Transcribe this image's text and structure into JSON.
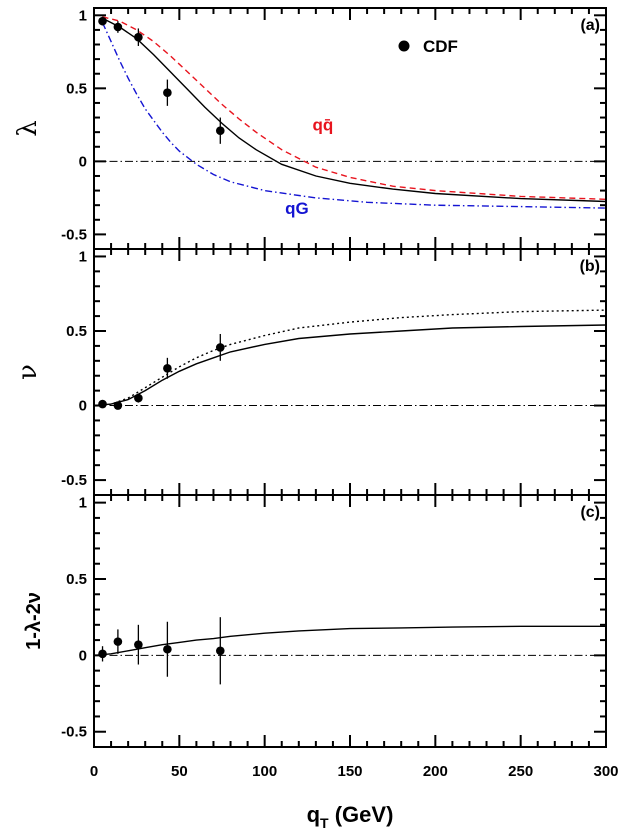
{
  "chart_data": {
    "type": "scatter",
    "x_label": "q",
    "x_label_sub": "T",
    "x_label_unit": " (GeV)",
    "xlim": [
      0,
      300
    ],
    "x_ticks": [
      0,
      50,
      100,
      150,
      200,
      250,
      300
    ],
    "x_tick_labels": [
      "0",
      "50",
      "100",
      "150",
      "200",
      "250",
      "300"
    ],
    "legend": {
      "label": "CDF",
      "position": "top-right"
    },
    "panels": [
      {
        "tag": "(a)",
        "ylabel": "λ",
        "ylim": [
          -0.6,
          1.05
        ],
        "y_ticks": [
          -0.5,
          0,
          0.5,
          1
        ],
        "y_tick_labels": [
          "-0.5",
          "0",
          "0.5",
          "1"
        ],
        "points": [
          {
            "x": 5,
            "y": 0.96,
            "err": 0.03
          },
          {
            "x": 14,
            "y": 0.92,
            "err": 0.04
          },
          {
            "x": 26,
            "y": 0.85,
            "err": 0.06
          },
          {
            "x": 43,
            "y": 0.47,
            "err": 0.09
          },
          {
            "x": 74,
            "y": 0.21,
            "err": 0.09
          }
        ],
        "curves": [
          {
            "name": "",
            "style": "solid",
            "color": "#000000",
            "x": [
              5,
              15,
              25,
              35,
              45,
              55,
              65,
              75,
              85,
              95,
              110,
              130,
              150,
              175,
              200,
              250,
              300
            ],
            "y": [
              0.98,
              0.92,
              0.84,
              0.73,
              0.61,
              0.49,
              0.37,
              0.26,
              0.16,
              0.08,
              -0.02,
              -0.1,
              -0.15,
              -0.19,
              -0.22,
              -0.255,
              -0.275
            ]
          },
          {
            "name": "qq̄",
            "style": "dashed",
            "color": "#e8141e",
            "x": [
              5,
              15,
              25,
              35,
              45,
              55,
              65,
              75,
              85,
              95,
              110,
              130,
              150,
              175,
              200,
              250,
              300
            ],
            "y": [
              0.99,
              0.96,
              0.9,
              0.82,
              0.72,
              0.61,
              0.5,
              0.39,
              0.29,
              0.2,
              0.08,
              -0.04,
              -0.11,
              -0.17,
              -0.2,
              -0.24,
              -0.26
            ]
          },
          {
            "name": "qG",
            "style": "dashdot",
            "color": "#1414d2",
            "x": [
              5,
              10,
              15,
              20,
              25,
              30,
              35,
              40,
              45,
              50,
              60,
              70,
              80,
              100,
              130,
              160,
              200,
              250,
              300
            ],
            "y": [
              0.95,
              0.82,
              0.69,
              0.57,
              0.46,
              0.36,
              0.28,
              0.2,
              0.13,
              0.07,
              -0.02,
              -0.09,
              -0.14,
              -0.2,
              -0.25,
              -0.28,
              -0.3,
              -0.31,
              -0.32
            ]
          }
        ],
        "curve_labels": [
          {
            "text": "qq̄",
            "color": "#e8141e",
            "x": 128,
            "y": 0.21
          },
          {
            "text": "qG",
            "color": "#1414d2",
            "x": 112,
            "y": -0.36
          }
        ]
      },
      {
        "tag": "(b)",
        "ylabel": "ν",
        "ylim": [
          -0.6,
          1.05
        ],
        "y_ticks": [
          -0.5,
          0,
          0.5,
          1
        ],
        "y_tick_labels": [
          "-0.5",
          "0",
          "0.5",
          "1"
        ],
        "points": [
          {
            "x": 5,
            "y": 0.01,
            "err": 0.02
          },
          {
            "x": 14,
            "y": 0.0,
            "err": 0.02
          },
          {
            "x": 26,
            "y": 0.05,
            "err": 0.03
          },
          {
            "x": 43,
            "y": 0.25,
            "err": 0.07
          },
          {
            "x": 74,
            "y": 0.39,
            "err": 0.09
          }
        ],
        "curves": [
          {
            "name": "",
            "style": "solid",
            "color": "#000000",
            "x": [
              0,
              10,
              20,
              30,
              40,
              50,
              60,
              70,
              80,
              100,
              120,
              150,
              180,
              210,
              250,
              300
            ],
            "y": [
              0.0,
              0.01,
              0.04,
              0.1,
              0.17,
              0.23,
              0.28,
              0.32,
              0.36,
              0.41,
              0.45,
              0.48,
              0.5,
              0.52,
              0.53,
              0.54
            ]
          },
          {
            "name": "",
            "style": "dotted",
            "color": "#000000",
            "x": [
              0,
              10,
              20,
              30,
              40,
              50,
              60,
              70,
              80,
              100,
              120,
              150,
              180,
              210,
              250,
              300
            ],
            "y": [
              0.0,
              0.01,
              0.05,
              0.12,
              0.19,
              0.26,
              0.32,
              0.37,
              0.41,
              0.47,
              0.52,
              0.56,
              0.59,
              0.61,
              0.63,
              0.64
            ]
          }
        ],
        "curve_labels": []
      },
      {
        "tag": "(c)",
        "ylabel": "1-λ-2ν",
        "ylim": [
          -0.6,
          1.05
        ],
        "y_ticks": [
          -0.5,
          0,
          0.5,
          1
        ],
        "y_tick_labels": [
          "-0.5",
          "0",
          "0.5",
          "1"
        ],
        "points": [
          {
            "x": 5,
            "y": 0.01,
            "err": 0.05
          },
          {
            "x": 14,
            "y": 0.09,
            "err": 0.08
          },
          {
            "x": 26,
            "y": 0.07,
            "err": 0.13
          },
          {
            "x": 43,
            "y": 0.04,
            "err": 0.18
          },
          {
            "x": 74,
            "y": 0.03,
            "err": 0.22
          }
        ],
        "curves": [
          {
            "name": "",
            "style": "solid",
            "color": "#000000",
            "x": [
              0,
              10,
              20,
              30,
              40,
              50,
              60,
              70,
              80,
              100,
              120,
              150,
              180,
              210,
              250,
              300
            ],
            "y": [
              0.0,
              0.01,
              0.03,
              0.05,
              0.07,
              0.085,
              0.1,
              0.11,
              0.125,
              0.145,
              0.16,
              0.175,
              0.18,
              0.185,
              0.19,
              0.19
            ]
          }
        ],
        "curve_labels": []
      }
    ]
  }
}
